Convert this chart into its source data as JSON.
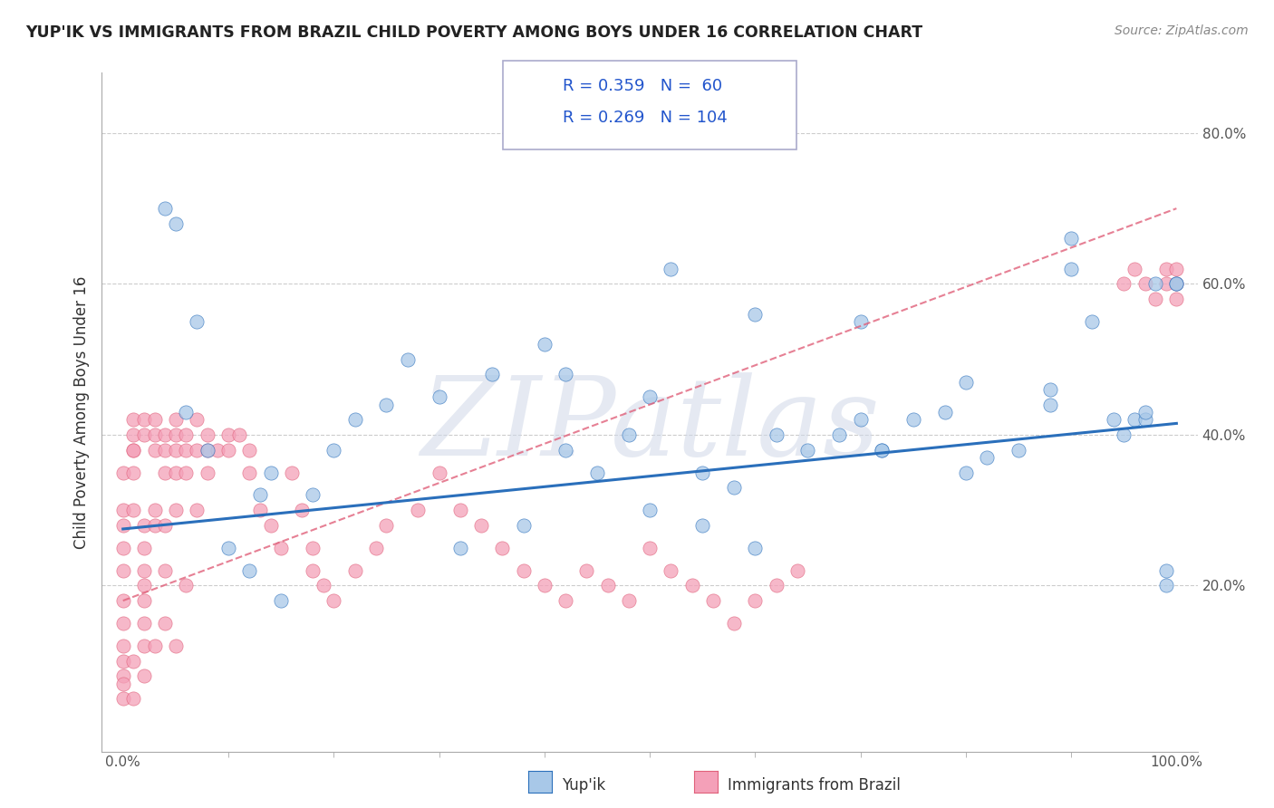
{
  "title": "YUP'IK VS IMMIGRANTS FROM BRAZIL CHILD POVERTY AMONG BOYS UNDER 16 CORRELATION CHART",
  "source": "Source: ZipAtlas.com",
  "ylabel": "Child Poverty Among Boys Under 16",
  "ytick_values": [
    0.2,
    0.4,
    0.6,
    0.8
  ],
  "ytick_labels": [
    "20.0%",
    "40.0%",
    "60.0%",
    "80.0%"
  ],
  "xtick_values": [
    0.0,
    1.0
  ],
  "xtick_labels": [
    "0.0%",
    "100.0%"
  ],
  "legend1_r": "0.359",
  "legend1_n": "60",
  "legend2_r": "0.269",
  "legend2_n": "104",
  "yupik_color": "#a8c8e8",
  "brazil_color": "#f4a0b8",
  "yupik_line_color": "#2a6fbb",
  "brazil_line_color": "#e0607a",
  "watermark_text": "ZIPatlas",
  "background_color": "#ffffff",
  "grid_color": "#cccccc",
  "xlim": [
    -0.02,
    1.02
  ],
  "ylim": [
    -0.02,
    0.88
  ],
  "yupik_x": [
    0.04,
    0.07,
    0.1,
    0.12,
    0.14,
    0.15,
    0.18,
    0.2,
    0.22,
    0.25,
    0.27,
    0.3,
    0.32,
    0.35,
    0.38,
    0.4,
    0.42,
    0.45,
    0.48,
    0.5,
    0.52,
    0.55,
    0.58,
    0.6,
    0.62,
    0.65,
    0.68,
    0.7,
    0.72,
    0.75,
    0.78,
    0.8,
    0.82,
    0.85,
    0.88,
    0.9,
    0.92,
    0.95,
    0.96,
    0.97,
    0.98,
    0.99,
    0.99,
    1.0,
    0.05,
    0.06,
    0.08,
    0.13,
    0.55,
    0.72,
    0.9,
    0.5,
    0.42,
    0.6,
    0.7,
    0.8,
    0.88,
    0.94,
    0.97,
    1.0
  ],
  "yupik_y": [
    0.7,
    0.55,
    0.25,
    0.22,
    0.35,
    0.18,
    0.32,
    0.38,
    0.42,
    0.44,
    0.5,
    0.45,
    0.25,
    0.48,
    0.28,
    0.52,
    0.38,
    0.35,
    0.4,
    0.3,
    0.62,
    0.35,
    0.33,
    0.25,
    0.4,
    0.38,
    0.4,
    0.42,
    0.38,
    0.42,
    0.43,
    0.35,
    0.37,
    0.38,
    0.46,
    0.66,
    0.55,
    0.4,
    0.42,
    0.42,
    0.6,
    0.2,
    0.22,
    0.6,
    0.68,
    0.43,
    0.38,
    0.32,
    0.28,
    0.38,
    0.62,
    0.45,
    0.48,
    0.56,
    0.55,
    0.47,
    0.44,
    0.42,
    0.43,
    0.6
  ],
  "brazil_x": [
    0.0,
    0.0,
    0.0,
    0.0,
    0.0,
    0.0,
    0.0,
    0.0,
    0.0,
    0.0,
    0.0,
    0.0,
    0.01,
    0.01,
    0.01,
    0.01,
    0.01,
    0.01,
    0.01,
    0.01,
    0.02,
    0.02,
    0.02,
    0.02,
    0.02,
    0.02,
    0.02,
    0.02,
    0.02,
    0.02,
    0.03,
    0.03,
    0.03,
    0.03,
    0.03,
    0.03,
    0.04,
    0.04,
    0.04,
    0.04,
    0.04,
    0.04,
    0.05,
    0.05,
    0.05,
    0.05,
    0.05,
    0.05,
    0.06,
    0.06,
    0.06,
    0.06,
    0.07,
    0.07,
    0.07,
    0.08,
    0.08,
    0.08,
    0.09,
    0.1,
    0.1,
    0.11,
    0.12,
    0.12,
    0.13,
    0.14,
    0.15,
    0.16,
    0.17,
    0.18,
    0.18,
    0.19,
    0.2,
    0.22,
    0.24,
    0.25,
    0.28,
    0.3,
    0.32,
    0.34,
    0.36,
    0.38,
    0.4,
    0.42,
    0.44,
    0.46,
    0.48,
    0.5,
    0.52,
    0.54,
    0.56,
    0.58,
    0.6,
    0.62,
    0.64,
    0.95,
    0.96,
    0.97,
    0.98,
    0.99,
    1.0,
    1.0,
    0.99,
    1.0
  ],
  "brazil_y": [
    0.25,
    0.28,
    0.3,
    0.05,
    0.08,
    0.1,
    0.12,
    0.15,
    0.18,
    0.07,
    0.22,
    0.35,
    0.38,
    0.4,
    0.42,
    0.3,
    0.1,
    0.05,
    0.35,
    0.38,
    0.42,
    0.4,
    0.28,
    0.08,
    0.12,
    0.2,
    0.15,
    0.25,
    0.18,
    0.22,
    0.4,
    0.42,
    0.38,
    0.28,
    0.3,
    0.12,
    0.38,
    0.4,
    0.35,
    0.28,
    0.22,
    0.15,
    0.42,
    0.4,
    0.38,
    0.35,
    0.3,
    0.12,
    0.4,
    0.38,
    0.35,
    0.2,
    0.38,
    0.42,
    0.3,
    0.4,
    0.38,
    0.35,
    0.38,
    0.4,
    0.38,
    0.4,
    0.38,
    0.35,
    0.3,
    0.28,
    0.25,
    0.35,
    0.3,
    0.22,
    0.25,
    0.2,
    0.18,
    0.22,
    0.25,
    0.28,
    0.3,
    0.35,
    0.3,
    0.28,
    0.25,
    0.22,
    0.2,
    0.18,
    0.22,
    0.2,
    0.18,
    0.25,
    0.22,
    0.2,
    0.18,
    0.15,
    0.18,
    0.2,
    0.22,
    0.6,
    0.62,
    0.6,
    0.58,
    0.62,
    0.6,
    0.58,
    0.6,
    0.62
  ],
  "yupik_trend_x": [
    0.0,
    1.0
  ],
  "yupik_trend_y": [
    0.275,
    0.415
  ],
  "brazil_trend_x": [
    0.0,
    1.0
  ],
  "brazil_trend_y": [
    0.18,
    0.7
  ],
  "bottom_legend_yupik": "Yup'ik",
  "bottom_legend_brazil": "Immigrants from Brazil"
}
